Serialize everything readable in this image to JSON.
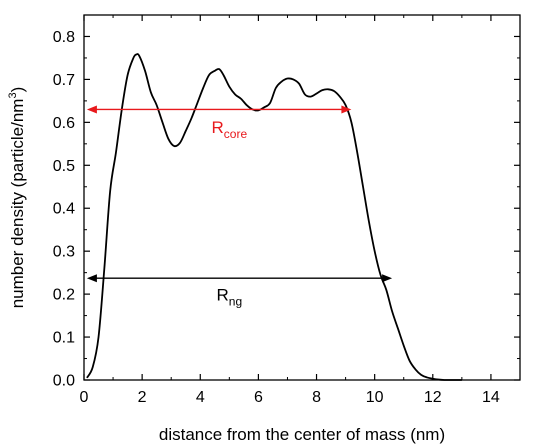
{
  "chart_data": {
    "type": "line",
    "title": "",
    "xlabel": "distance from the center of mass (nm)",
    "ylabel_main": "number density (particle/nm",
    "ylabel_sup": "3",
    "ylabel_close": ")",
    "xlim": [
      0,
      15
    ],
    "ylim": [
      0,
      0.85
    ],
    "x_ticks": [
      "0",
      "2",
      "4",
      "6",
      "8",
      "10",
      "12",
      "14"
    ],
    "y_ticks": [
      "0.0",
      "0.1",
      "0.2",
      "0.3",
      "0.4",
      "0.5",
      "0.6",
      "0.7",
      "0.8"
    ],
    "grid": false,
    "series": [
      {
        "color": "#000000",
        "x": [
          0.1,
          0.3,
          0.5,
          0.7,
          0.9,
          1.1,
          1.3,
          1.5,
          1.7,
          1.8,
          1.9,
          2.1,
          2.3,
          2.5,
          2.7,
          2.9,
          3.1,
          3.3,
          3.5,
          3.7,
          3.9,
          4.1,
          4.3,
          4.5,
          4.65,
          4.8,
          5.0,
          5.2,
          5.4,
          5.6,
          5.8,
          6.0,
          6.2,
          6.4,
          6.6,
          6.8,
          7.0,
          7.2,
          7.4,
          7.6,
          7.8,
          8.0,
          8.2,
          8.4,
          8.6,
          8.8,
          9.0,
          9.2,
          9.4,
          9.6,
          9.8,
          10.0,
          10.2,
          10.4,
          10.6,
          10.8,
          11.0,
          11.2,
          11.4,
          11.6,
          11.8,
          12.0,
          12.2,
          12.4,
          12.6,
          12.8,
          13.0
        ],
        "y": [
          0.005,
          0.03,
          0.1,
          0.26,
          0.44,
          0.53,
          0.63,
          0.71,
          0.75,
          0.758,
          0.755,
          0.72,
          0.67,
          0.64,
          0.6,
          0.562,
          0.545,
          0.552,
          0.58,
          0.61,
          0.645,
          0.68,
          0.71,
          0.72,
          0.724,
          0.71,
          0.683,
          0.665,
          0.655,
          0.64,
          0.63,
          0.628,
          0.635,
          0.645,
          0.68,
          0.695,
          0.702,
          0.7,
          0.69,
          0.665,
          0.66,
          0.667,
          0.675,
          0.677,
          0.673,
          0.66,
          0.64,
          0.6,
          0.53,
          0.45,
          0.37,
          0.3,
          0.245,
          0.21,
          0.16,
          0.12,
          0.08,
          0.045,
          0.025,
          0.012,
          0.006,
          0.003,
          0.001,
          0.0,
          0.0,
          0.0,
          0.0
        ]
      }
    ],
    "annotations": [
      {
        "label": "R",
        "sub": "core",
        "color": "#e8191c",
        "x_start": 0.1,
        "x_end": 9.2,
        "y": 0.63,
        "label_x": 5.0,
        "label_y": 0.58
      },
      {
        "label": "R",
        "sub": "ng",
        "color": "#000000",
        "x_start": 0.1,
        "x_end": 10.6,
        "y": 0.237,
        "label_x": 5.0,
        "label_y": 0.19
      }
    ]
  }
}
